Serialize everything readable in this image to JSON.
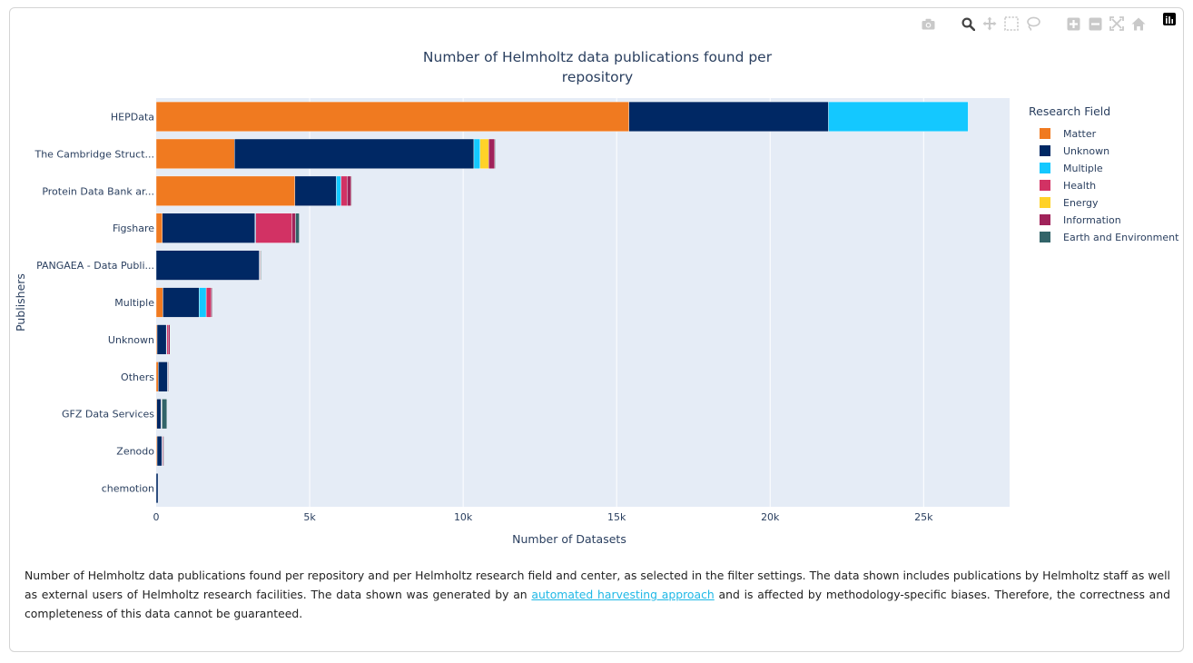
{
  "toolbar": {
    "buttons": [
      "camera-icon",
      "zoom-icon",
      "pan-icon",
      "box-select-icon",
      "lasso-icon",
      "zoom-in-icon",
      "zoom-out-icon",
      "autoscale-icon",
      "reset-axes-icon"
    ]
  },
  "caption": {
    "text_before": "Number of Helmholtz data publications found per repository and per Helmholtz research field and center, as selected in the filter settings. The data shown includes publications by Helmholtz staff as well as external users of Helmholtz research facilities. The data shown was generated by an ",
    "link_text": "automated harvesting approach",
    "text_after": " and is affected by methodology-specific biases. Therefore, the correctness and completeness of this data cannot be guaranteed."
  },
  "chart_data": {
    "type": "bar",
    "orientation": "horizontal",
    "stacked": true,
    "title": [
      "Number of Helmholtz data publications found per",
      "repository"
    ],
    "xlabel": "Number of Datasets",
    "ylabel": "Publishers",
    "xlim": [
      0,
      27800
    ],
    "x_ticks": [
      0,
      5000,
      10000,
      15000,
      20000,
      25000
    ],
    "x_tick_labels": [
      "0",
      "5k",
      "10k",
      "15k",
      "20k",
      "25k"
    ],
    "grid": true,
    "legend_title": "Research Field",
    "legend_position": "right",
    "categories": [
      "HEPData",
      "The Cambridge Struct...",
      "Protein Data Bank ar...",
      "Figshare",
      "PANGAEA - Data Publi...",
      "Multiple",
      "Unknown",
      "Others",
      "GFZ Data Services",
      "Zenodo",
      "chemotion"
    ],
    "series": [
      {
        "name": "Matter",
        "color": "#f07a20",
        "values": [
          15400,
          2550,
          4520,
          200,
          0,
          220,
          30,
          70,
          20,
          30,
          0
        ]
      },
      {
        "name": "Unknown",
        "color": "#002864",
        "values": [
          6500,
          7800,
          1350,
          3020,
          3360,
          1180,
          300,
          300,
          140,
          160,
          60
        ]
      },
      {
        "name": "Multiple",
        "color": "#14c8ff",
        "values": [
          4550,
          200,
          150,
          20,
          10,
          230,
          20,
          10,
          10,
          10,
          0
        ]
      },
      {
        "name": "Health",
        "color": "#d23264",
        "values": [
          0,
          0,
          200,
          1180,
          10,
          150,
          40,
          0,
          10,
          0,
          0
        ]
      },
      {
        "name": "Energy",
        "color": "#ffd228",
        "values": [
          0,
          280,
          0,
          0,
          0,
          0,
          0,
          0,
          0,
          0,
          0
        ]
      },
      {
        "name": "Information",
        "color": "#a0235a",
        "values": [
          0,
          200,
          130,
          120,
          20,
          40,
          60,
          20,
          10,
          30,
          0
        ]
      },
      {
        "name": "Earth and Environment",
        "color": "#326469",
        "values": [
          0,
          20,
          20,
          120,
          20,
          20,
          10,
          10,
          160,
          20,
          0
        ]
      }
    ]
  }
}
